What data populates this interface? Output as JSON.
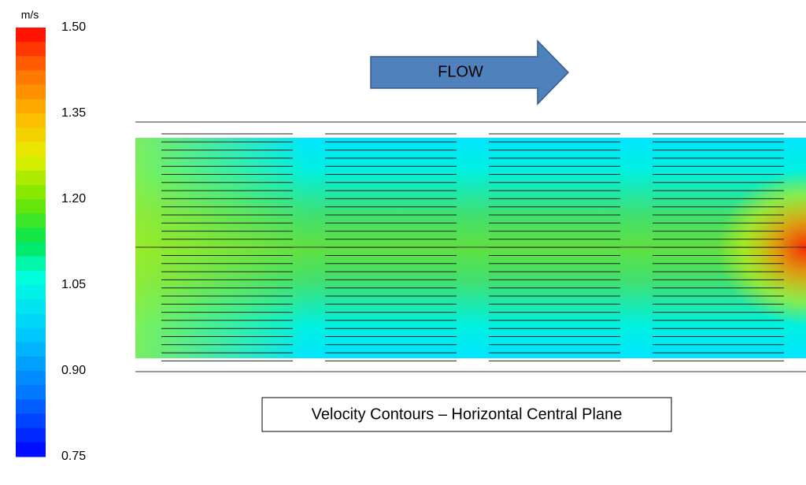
{
  "legend": {
    "unit": "m/s",
    "ticks": [
      "1.50",
      "1.35",
      "1.20",
      "1.05",
      "0.90",
      "0.75"
    ]
  },
  "arrow": {
    "label": "FLOW"
  },
  "caption": "Velocity Contours – Horizontal Central Plane"
}
